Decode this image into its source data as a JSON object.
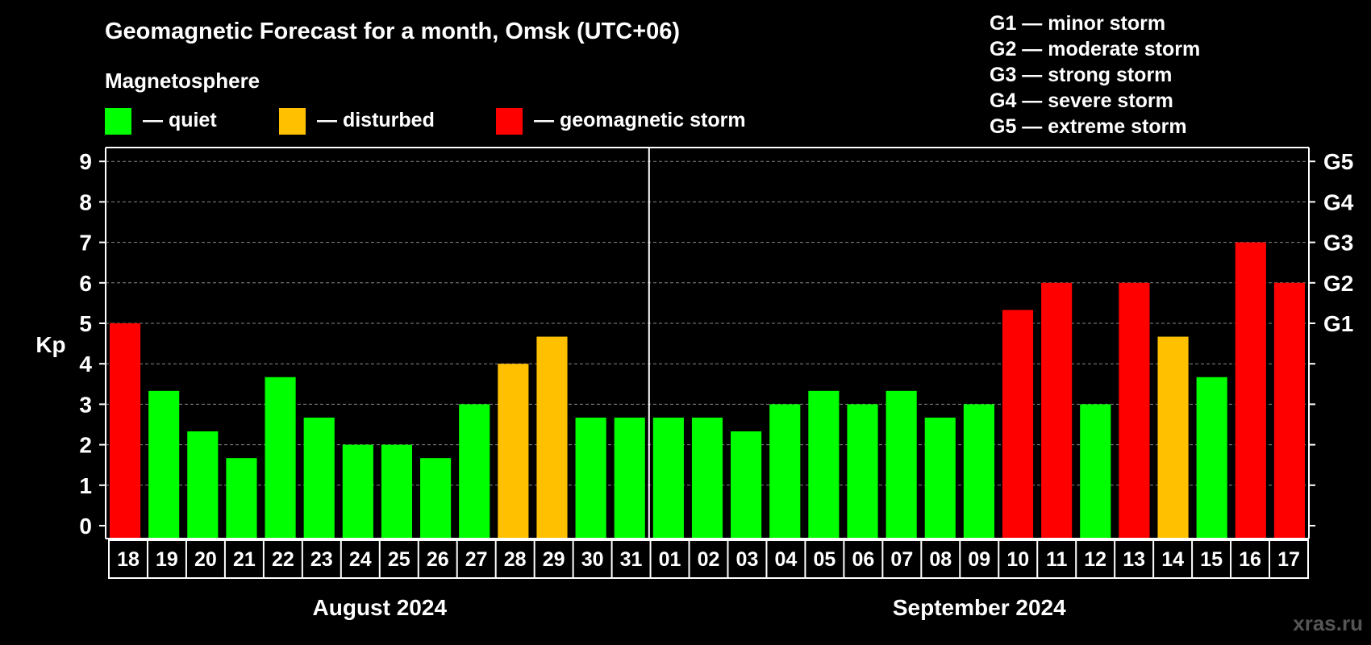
{
  "chart_data": {
    "type": "bar",
    "title": "Geomagnetic Forecast for a month, Omsk (UTC+06)",
    "legend_heading": "Magnetosphere",
    "legend": [
      {
        "label": "— quiet",
        "color": "#00FF00"
      },
      {
        "label": "— disturbed",
        "color": "#FFC000"
      },
      {
        "label": "— geomagnetic storm",
        "color": "#FF0000"
      }
    ],
    "storm_scale": [
      "G1 — minor storm",
      "G2 — moderate storm",
      "G3 — strong storm",
      "G4 — severe storm",
      "G5 — extreme storm"
    ],
    "ylabel": "Kp",
    "ylim": [
      0,
      9
    ],
    "yticks": [
      "0",
      "1",
      "2",
      "3",
      "4",
      "5",
      "6",
      "7",
      "8",
      "9"
    ],
    "right_ticks": [
      {
        "kp": 5,
        "label": "G1"
      },
      {
        "kp": 6,
        "label": "G2"
      },
      {
        "kp": 7,
        "label": "G3"
      },
      {
        "kp": 8,
        "label": "G4"
      },
      {
        "kp": 9,
        "label": "G5"
      }
    ],
    "grid": true,
    "months": [
      {
        "label": "August 2024",
        "days": 14
      },
      {
        "label": "September 2024",
        "days": 17
      }
    ],
    "categories": [
      "18",
      "19",
      "20",
      "21",
      "22",
      "23",
      "24",
      "25",
      "26",
      "27",
      "28",
      "29",
      "30",
      "31",
      "01",
      "02",
      "03",
      "04",
      "05",
      "06",
      "07",
      "08",
      "09",
      "10",
      "11",
      "12",
      "13",
      "14",
      "15",
      "16",
      "17"
    ],
    "values": [
      5,
      3.33,
      2.33,
      1.67,
      3.67,
      2.67,
      2,
      2,
      1.67,
      3,
      4,
      4.67,
      2.67,
      2.67,
      2.67,
      2.67,
      2.33,
      3,
      3.33,
      3,
      3.33,
      2.67,
      3,
      5.33,
      6,
      3,
      6,
      4.67,
      3.67,
      7,
      6
    ],
    "status": [
      "storm",
      "quiet",
      "quiet",
      "quiet",
      "quiet",
      "quiet",
      "quiet",
      "quiet",
      "quiet",
      "quiet",
      "disturbed",
      "disturbed",
      "quiet",
      "quiet",
      "quiet",
      "quiet",
      "quiet",
      "quiet",
      "quiet",
      "quiet",
      "quiet",
      "quiet",
      "quiet",
      "storm",
      "storm",
      "quiet",
      "storm",
      "disturbed",
      "quiet",
      "storm",
      "storm"
    ],
    "status_colors": {
      "quiet": "#00FF00",
      "disturbed": "#FFC000",
      "storm": "#FF0000"
    }
  },
  "watermark": "xras.ru"
}
